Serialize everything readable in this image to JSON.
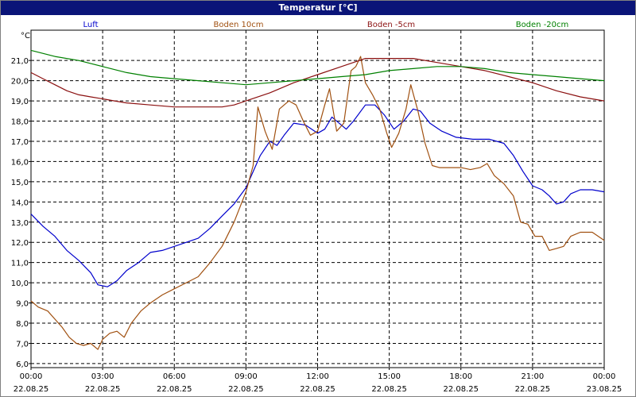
{
  "chart_data": {
    "type": "line",
    "title": "Temperatur [°C]",
    "ylabel": "°C",
    "ylim": [
      5.8,
      22.5
    ],
    "y_ticks": [
      "6,0",
      "7,0",
      "8,0",
      "9,0",
      "10,0",
      "11,0",
      "12,0",
      "13,0",
      "14,0",
      "15,0",
      "16,0",
      "17,0",
      "18,0",
      "19,0",
      "20,0",
      "21,0"
    ],
    "x_ticks": [
      {
        "time": "00:00",
        "date": "22.08.25"
      },
      {
        "time": "03:00",
        "date": "22.08.25"
      },
      {
        "time": "06:00",
        "date": "22.08.25"
      },
      {
        "time": "09:00",
        "date": "22.08.25"
      },
      {
        "time": "12:00",
        "date": "22.08.25"
      },
      {
        "time": "15:00",
        "date": "22.08.25"
      },
      {
        "time": "18:00",
        "date": "22.08.25"
      },
      {
        "time": "21:00",
        "date": "22.08.25"
      },
      {
        "time": "00:00",
        "date": "23.08.25"
      }
    ],
    "grid": true,
    "legend_position": "top",
    "series": [
      {
        "name": "Luft",
        "color": "#0000cc",
        "points": [
          [
            0,
            13.4
          ],
          [
            0.5,
            12.8
          ],
          [
            1,
            12.3
          ],
          [
            1.5,
            11.6
          ],
          [
            2,
            11.1
          ],
          [
            2.5,
            10.5
          ],
          [
            2.8,
            9.9
          ],
          [
            3.2,
            9.8
          ],
          [
            3.6,
            10.1
          ],
          [
            4,
            10.6
          ],
          [
            4.5,
            11.0
          ],
          [
            5,
            11.5
          ],
          [
            5.5,
            11.6
          ],
          [
            6,
            11.8
          ],
          [
            6.5,
            12.0
          ],
          [
            7,
            12.2
          ],
          [
            7.5,
            12.7
          ],
          [
            8,
            13.3
          ],
          [
            8.5,
            13.9
          ],
          [
            9,
            14.7
          ],
          [
            9.3,
            15.5
          ],
          [
            9.6,
            16.3
          ],
          [
            10,
            17.0
          ],
          [
            10.3,
            16.8
          ],
          [
            10.6,
            17.3
          ],
          [
            11,
            17.9
          ],
          [
            11.5,
            17.8
          ],
          [
            12,
            17.4
          ],
          [
            12.3,
            17.6
          ],
          [
            12.6,
            18.2
          ],
          [
            12.9,
            17.9
          ],
          [
            13.2,
            17.6
          ],
          [
            13.5,
            18.0
          ],
          [
            14,
            18.8
          ],
          [
            14.4,
            18.8
          ],
          [
            14.8,
            18.3
          ],
          [
            15.2,
            17.6
          ],
          [
            15.6,
            18.0
          ],
          [
            16,
            18.6
          ],
          [
            16.3,
            18.5
          ],
          [
            16.7,
            17.9
          ],
          [
            17.2,
            17.5
          ],
          [
            17.8,
            17.2
          ],
          [
            18.5,
            17.1
          ],
          [
            19.2,
            17.1
          ],
          [
            19.8,
            16.9
          ],
          [
            20.2,
            16.3
          ],
          [
            20.6,
            15.5
          ],
          [
            21,
            14.8
          ],
          [
            21.4,
            14.6
          ],
          [
            21.7,
            14.3
          ],
          [
            22,
            13.9
          ],
          [
            22.3,
            14.0
          ],
          [
            22.6,
            14.4
          ],
          [
            23,
            14.6
          ],
          [
            23.5,
            14.6
          ],
          [
            24,
            14.5
          ]
        ]
      },
      {
        "name": "Boden 10cm",
        "color": "#a05010",
        "points": [
          [
            0,
            9.1
          ],
          [
            0.3,
            8.8
          ],
          [
            0.7,
            8.6
          ],
          [
            1,
            8.2
          ],
          [
            1.3,
            7.8
          ],
          [
            1.6,
            7.3
          ],
          [
            1.9,
            7.0
          ],
          [
            2.2,
            6.9
          ],
          [
            2.5,
            7.0
          ],
          [
            2.8,
            6.7
          ],
          [
            3,
            7.2
          ],
          [
            3.3,
            7.5
          ],
          [
            3.6,
            7.6
          ],
          [
            3.9,
            7.3
          ],
          [
            4.2,
            8.0
          ],
          [
            4.6,
            8.6
          ],
          [
            5,
            9.0
          ],
          [
            5.5,
            9.4
          ],
          [
            6,
            9.7
          ],
          [
            6.5,
            10.0
          ],
          [
            7,
            10.3
          ],
          [
            7.5,
            11.0
          ],
          [
            8,
            11.8
          ],
          [
            8.5,
            13.0
          ],
          [
            9,
            14.5
          ],
          [
            9.3,
            15.8
          ],
          [
            9.5,
            18.7
          ],
          [
            9.8,
            17.5
          ],
          [
            10.1,
            16.6
          ],
          [
            10.4,
            18.6
          ],
          [
            10.8,
            19.0
          ],
          [
            11.1,
            18.8
          ],
          [
            11.4,
            18.0
          ],
          [
            11.7,
            17.3
          ],
          [
            12,
            17.5
          ],
          [
            12.3,
            18.8
          ],
          [
            12.5,
            19.6
          ],
          [
            12.8,
            17.5
          ],
          [
            13.1,
            17.9
          ],
          [
            13.4,
            20.5
          ],
          [
            13.6,
            20.7
          ],
          [
            13.8,
            21.2
          ],
          [
            14,
            19.9
          ],
          [
            14.3,
            19.3
          ],
          [
            14.6,
            18.6
          ],
          [
            14.9,
            17.4
          ],
          [
            15.1,
            16.7
          ],
          [
            15.4,
            17.4
          ],
          [
            15.7,
            18.6
          ],
          [
            15.9,
            19.8
          ],
          [
            16.2,
            18.5
          ],
          [
            16.5,
            16.9
          ],
          [
            16.8,
            15.8
          ],
          [
            17.1,
            15.7
          ],
          [
            17.6,
            15.7
          ],
          [
            18,
            15.7
          ],
          [
            18.4,
            15.6
          ],
          [
            18.8,
            15.7
          ],
          [
            19.1,
            15.9
          ],
          [
            19.4,
            15.3
          ],
          [
            19.8,
            14.9
          ],
          [
            20.2,
            14.3
          ],
          [
            20.5,
            13.0
          ],
          [
            20.8,
            12.9
          ],
          [
            21.1,
            12.3
          ],
          [
            21.4,
            12.3
          ],
          [
            21.7,
            11.6
          ],
          [
            22,
            11.7
          ],
          [
            22.3,
            11.8
          ],
          [
            22.6,
            12.3
          ],
          [
            23,
            12.5
          ],
          [
            23.5,
            12.5
          ],
          [
            24,
            12.1
          ]
        ]
      },
      {
        "name": "Boden -5cm",
        "color": "#8b1010",
        "points": [
          [
            0,
            20.4
          ],
          [
            0.5,
            20.1
          ],
          [
            1,
            19.8
          ],
          [
            1.5,
            19.5
          ],
          [
            2,
            19.3
          ],
          [
            2.5,
            19.2
          ],
          [
            3,
            19.1
          ],
          [
            3.5,
            19.0
          ],
          [
            4,
            18.9
          ],
          [
            5,
            18.8
          ],
          [
            6,
            18.7
          ],
          [
            7,
            18.7
          ],
          [
            8,
            18.7
          ],
          [
            8.5,
            18.8
          ],
          [
            9,
            19.0
          ],
          [
            10,
            19.4
          ],
          [
            11,
            19.9
          ],
          [
            12,
            20.3
          ],
          [
            13,
            20.7
          ],
          [
            14,
            21.1
          ],
          [
            15,
            21.1
          ],
          [
            16,
            21.1
          ],
          [
            17,
            20.9
          ],
          [
            18,
            20.7
          ],
          [
            19,
            20.5
          ],
          [
            20,
            20.2
          ],
          [
            21,
            19.9
          ],
          [
            22,
            19.5
          ],
          [
            23,
            19.2
          ],
          [
            24,
            19.0
          ]
        ]
      },
      {
        "name": "Boden -20cm",
        "color": "#008000",
        "points": [
          [
            0,
            21.5
          ],
          [
            1,
            21.2
          ],
          [
            2,
            21.0
          ],
          [
            3,
            20.7
          ],
          [
            4,
            20.4
          ],
          [
            5,
            20.2
          ],
          [
            6,
            20.1
          ],
          [
            7,
            20.0
          ],
          [
            8,
            19.9
          ],
          [
            9,
            19.8
          ],
          [
            10,
            19.9
          ],
          [
            11,
            20.0
          ],
          [
            12,
            20.1
          ],
          [
            13,
            20.2
          ],
          [
            14,
            20.3
          ],
          [
            15,
            20.5
          ],
          [
            16,
            20.6
          ],
          [
            17,
            20.7
          ],
          [
            18,
            20.7
          ],
          [
            19,
            20.6
          ],
          [
            20,
            20.4
          ],
          [
            21,
            20.3
          ],
          [
            22,
            20.2
          ],
          [
            23,
            20.1
          ],
          [
            24,
            20.0
          ]
        ]
      }
    ]
  }
}
